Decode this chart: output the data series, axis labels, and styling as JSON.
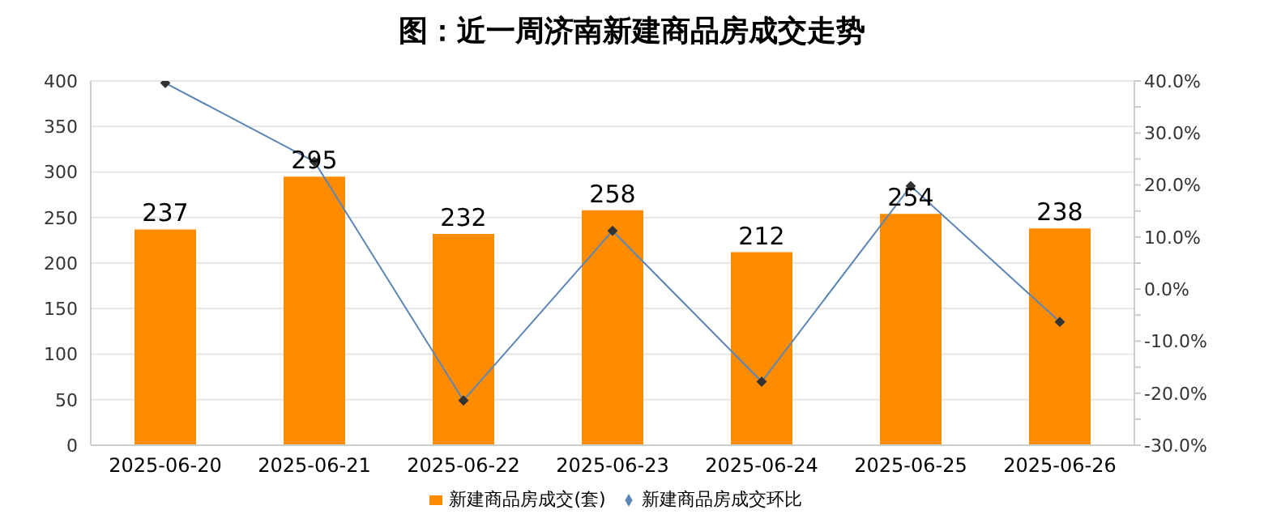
{
  "chart_data": {
    "type": "bar",
    "title": "图：近一周济南新建商品房成交走势",
    "categories": [
      "2025-06-20",
      "2025-06-21",
      "2025-06-22",
      "2025-06-23",
      "2025-06-24",
      "2025-06-25",
      "2025-06-26"
    ],
    "series": [
      {
        "name": "新建商品房成交(套)",
        "color": "#ff8c00",
        "values": [
          237,
          295,
          232,
          258,
          212,
          254,
          238
        ],
        "data_labels": true
      },
      {
        "name": "新建商品房成交环比",
        "type": "line",
        "axis": "y2",
        "color": "#5b86b5",
        "marker": "diamond",
        "values": [
          39.6,
          24.5,
          -21.4,
          11.2,
          -17.8,
          19.8,
          -6.3
        ]
      }
    ],
    "ylim": [
      0,
      400
    ],
    "yticks": [
      0,
      50,
      100,
      150,
      200,
      250,
      300,
      350,
      400
    ],
    "y2lim": [
      -30,
      40
    ],
    "y2ticks": [
      {
        "value": -30,
        "label": "-30.0%"
      },
      {
        "value": -25,
        "label": null
      },
      {
        "value": -20,
        "label": "-20.0%"
      },
      {
        "value": -15,
        "label": null
      },
      {
        "value": -10,
        "label": "-10.0%"
      },
      {
        "value": -5,
        "label": null
      },
      {
        "value": 0,
        "label": "0.0%"
      },
      {
        "value": 5,
        "label": null
      },
      {
        "value": 10,
        "label": "10.0%"
      },
      {
        "value": 15,
        "label": null
      },
      {
        "value": 20,
        "label": "20.0%"
      },
      {
        "value": 25,
        "label": null
      },
      {
        "value": 30,
        "label": "30.0%"
      },
      {
        "value": 35,
        "label": null
      },
      {
        "value": 40,
        "label": "40.0%"
      }
    ],
    "grid": "y",
    "legend": "bottom"
  }
}
